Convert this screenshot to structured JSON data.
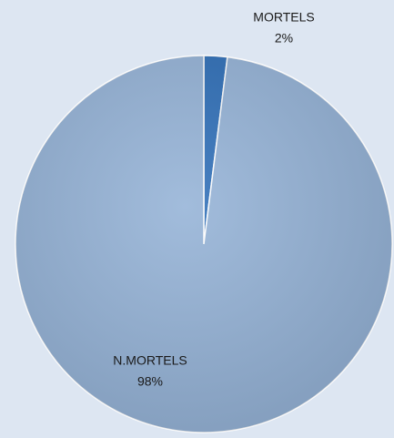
{
  "chart_data": {
    "type": "pie",
    "categories": [
      "MORTELS",
      "N.MORTELS"
    ],
    "values": [
      2,
      98
    ],
    "value_labels": [
      "2%",
      "98%"
    ],
    "colors": [
      "#2f6fb8",
      "#95b3d7"
    ]
  }
}
